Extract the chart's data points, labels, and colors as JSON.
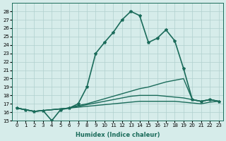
{
  "xlabel": "Humidex (Indice chaleur)",
  "ylabel": "",
  "background_color": "#d6ecea",
  "grid_color": "#b0d0ce",
  "line_color": "#1a6b5a",
  "xlim": [
    -0.5,
    23.5
  ],
  "ylim": [
    15,
    29
  ],
  "yticks": [
    15,
    16,
    17,
    18,
    19,
    20,
    21,
    22,
    23,
    24,
    25,
    26,
    27,
    28
  ],
  "xticks": [
    0,
    1,
    2,
    3,
    4,
    5,
    6,
    7,
    8,
    9,
    10,
    11,
    12,
    13,
    14,
    15,
    16,
    17,
    18,
    19,
    20,
    21,
    22,
    23
  ],
  "series": [
    {
      "x": [
        0,
        1,
        2,
        3,
        4,
        5,
        6,
        7,
        8,
        9,
        10,
        11,
        12,
        13,
        14,
        15,
        16,
        17,
        18,
        19,
        20,
        21,
        22,
        23
      ],
      "y": [
        16.5,
        16.3,
        16.1,
        16.2,
        15.0,
        16.3,
        16.5,
        17.0,
        19.0,
        23.0,
        24.3,
        25.5,
        27.0,
        28.0,
        27.5,
        24.3,
        24.8,
        25.8,
        24.5,
        21.2,
        17.5,
        17.3,
        17.5,
        17.3
      ],
      "marker": "*",
      "linestyle": "-",
      "linewidth": 1.2
    },
    {
      "x": [
        0,
        1,
        2,
        3,
        4,
        5,
        6,
        7,
        8,
        9,
        10,
        11,
        12,
        13,
        14,
        15,
        16,
        17,
        18,
        19,
        20,
        21,
        22,
        23
      ],
      "y": [
        16.5,
        16.3,
        16.1,
        16.2,
        16.3,
        16.4,
        16.5,
        16.8,
        17.0,
        17.3,
        17.6,
        17.9,
        18.2,
        18.5,
        18.8,
        19.0,
        19.3,
        19.6,
        19.8,
        20.0,
        17.5,
        17.3,
        17.5,
        17.3
      ],
      "marker": null,
      "linestyle": "-",
      "linewidth": 1.0
    },
    {
      "x": [
        0,
        1,
        2,
        3,
        4,
        5,
        6,
        7,
        8,
        9,
        10,
        11,
        12,
        13,
        14,
        15,
        16,
        17,
        18,
        19,
        20,
        21,
        22,
        23
      ],
      "y": [
        16.5,
        16.3,
        16.1,
        16.2,
        16.3,
        16.4,
        16.5,
        16.7,
        16.9,
        17.1,
        17.3,
        17.5,
        17.7,
        17.9,
        18.0,
        18.0,
        18.0,
        17.9,
        17.8,
        17.7,
        17.5,
        17.3,
        17.5,
        17.3
      ],
      "marker": null,
      "linestyle": "-",
      "linewidth": 1.0
    },
    {
      "x": [
        0,
        1,
        2,
        3,
        4,
        5,
        6,
        7,
        8,
        9,
        10,
        11,
        12,
        13,
        14,
        15,
        16,
        17,
        18,
        19,
        20,
        21,
        22,
        23
      ],
      "y": [
        16.5,
        16.3,
        16.1,
        16.2,
        16.3,
        16.4,
        16.5,
        16.6,
        16.7,
        16.8,
        16.9,
        17.0,
        17.1,
        17.2,
        17.3,
        17.3,
        17.3,
        17.3,
        17.3,
        17.2,
        17.1,
        17.0,
        17.2,
        17.3
      ],
      "marker": null,
      "linestyle": "-",
      "linewidth": 1.0
    }
  ]
}
